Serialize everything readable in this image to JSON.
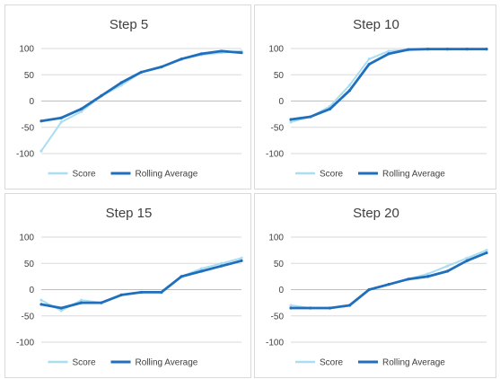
{
  "colors": {
    "score": "#a9def1",
    "rolling": "#1f6fbd",
    "grid": "#d9d9d9",
    "axis": "#bfbfbf",
    "text": "#404040"
  },
  "legend": {
    "score_label": "Score",
    "rolling_label": "Rolling Average"
  },
  "chart_data": [
    {
      "type": "line",
      "title": "Step 5",
      "ylim": [
        -100,
        100
      ],
      "yticks": [
        100,
        50,
        0,
        -50,
        -100
      ],
      "grid": true,
      "legend_position": "bottom",
      "x": [
        0,
        10,
        20,
        30,
        40,
        50,
        60,
        70,
        80,
        90,
        100
      ],
      "series": [
        {
          "name": "Score",
          "values": [
            -95,
            -40,
            -20,
            10,
            30,
            55,
            65,
            80,
            88,
            92,
            95
          ]
        },
        {
          "name": "Rolling Average",
          "values": [
            -38,
            -32,
            -15,
            10,
            35,
            55,
            65,
            80,
            90,
            95,
            92
          ]
        }
      ]
    },
    {
      "type": "line",
      "title": "Step 10",
      "ylim": [
        -100,
        100
      ],
      "yticks": [
        100,
        50,
        0,
        -50,
        -100
      ],
      "grid": true,
      "legend_position": "bottom",
      "x": [
        0,
        10,
        20,
        30,
        40,
        50,
        60,
        70,
        80,
        90,
        100
      ],
      "series": [
        {
          "name": "Score",
          "values": [
            -40,
            -30,
            -10,
            30,
            80,
            95,
            98,
            98,
            98,
            98,
            98
          ]
        },
        {
          "name": "Rolling Average",
          "values": [
            -35,
            -30,
            -15,
            20,
            70,
            90,
            98,
            99,
            99,
            99,
            99
          ]
        }
      ]
    },
    {
      "type": "line",
      "title": "Step 15",
      "ylim": [
        -100,
        100
      ],
      "yticks": [
        100,
        50,
        0,
        -50,
        -100
      ],
      "grid": true,
      "legend_position": "bottom",
      "x": [
        0,
        10,
        20,
        30,
        40,
        50,
        60,
        70,
        80,
        90,
        100
      ],
      "series": [
        {
          "name": "Score",
          "values": [
            -20,
            -40,
            -20,
            -25,
            -10,
            -5,
            -5,
            25,
            40,
            50,
            60
          ]
        },
        {
          "name": "Rolling Average",
          "values": [
            -28,
            -35,
            -25,
            -25,
            -10,
            -5,
            -5,
            25,
            35,
            45,
            55
          ]
        }
      ]
    },
    {
      "type": "line",
      "title": "Step 20",
      "ylim": [
        -100,
        100
      ],
      "yticks": [
        100,
        50,
        0,
        -50,
        -100
      ],
      "grid": true,
      "legend_position": "bottom",
      "x": [
        0,
        10,
        20,
        30,
        40,
        50,
        60,
        70,
        80,
        90,
        100
      ],
      "series": [
        {
          "name": "Score",
          "values": [
            -30,
            -35,
            -35,
            -30,
            0,
            10,
            20,
            30,
            45,
            60,
            75
          ]
        },
        {
          "name": "Rolling Average",
          "values": [
            -35,
            -35,
            -35,
            -30,
            0,
            10,
            20,
            25,
            35,
            55,
            70
          ]
        }
      ]
    }
  ]
}
